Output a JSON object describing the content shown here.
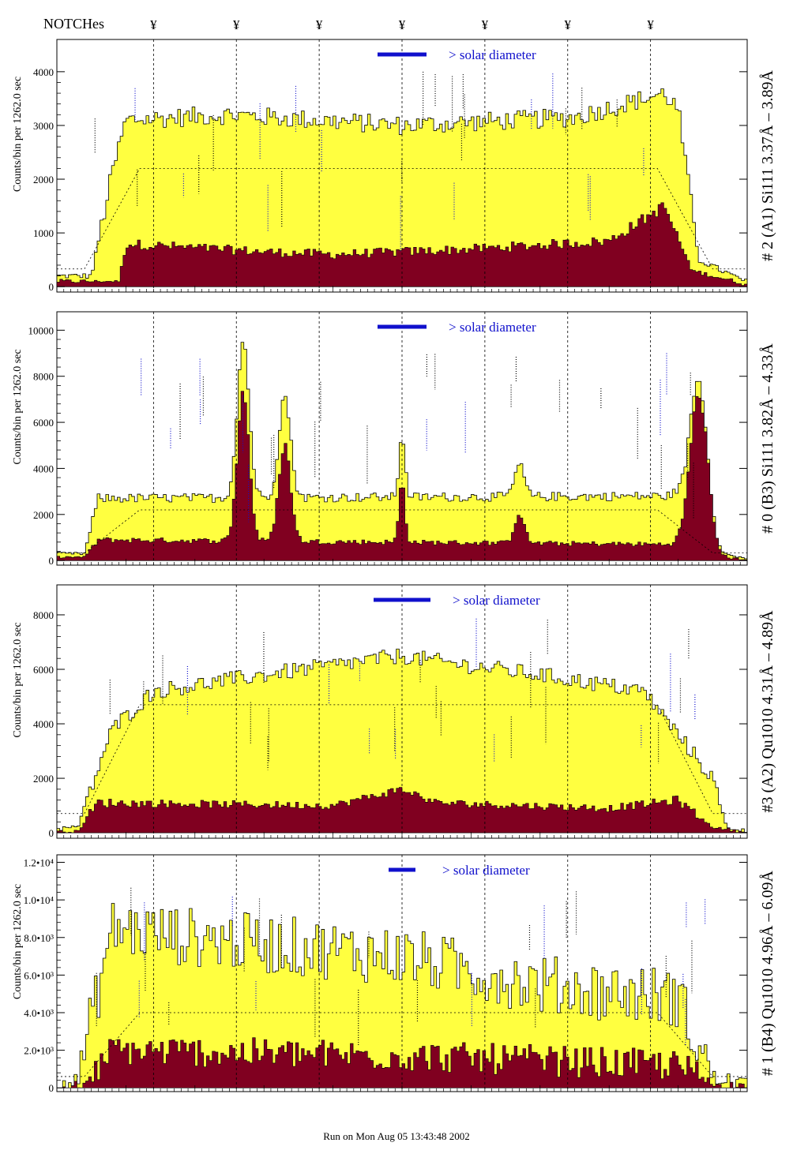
{
  "header": {
    "notches_label": "NOTCHes",
    "notch_marker": "¥"
  },
  "notch_positions": [
    0.14,
    0.26,
    0.38,
    0.5,
    0.62,
    0.74,
    0.86
  ],
  "footer": {
    "run_label": "Run on Mon Aug 05 13:43:48 2002"
  },
  "colors": {
    "total_fill": "#ffff40",
    "component_fill": "#800020",
    "label_blue": "#1010cc",
    "axis": "#000000"
  },
  "chart_data": [
    {
      "type": "bar",
      "panel_label": "# 2 (A1) Si111  3.37Å – 3.89Å",
      "ylabel": "Counts/bin per   1262.0 sec",
      "legend_text": "> solar diameter",
      "legend_position": "top-center",
      "yticks": [
        "0",
        "1000",
        "2000",
        "3000",
        "4000"
      ],
      "ylim": [
        -100,
        4600
      ],
      "profile": [
        [
          0.0,
          200
        ],
        [
          0.05,
          200
        ],
        [
          0.08,
          2100
        ],
        [
          0.1,
          3100
        ],
        [
          0.25,
          3200
        ],
        [
          0.5,
          3000
        ],
        [
          0.75,
          3150
        ],
        [
          0.88,
          3600
        ],
        [
          0.9,
          3300
        ],
        [
          0.93,
          500
        ],
        [
          1.0,
          80
        ]
      ],
      "component": [
        [
          0.0,
          100
        ],
        [
          0.09,
          100
        ],
        [
          0.1,
          800
        ],
        [
          0.3,
          650
        ],
        [
          0.4,
          600
        ],
        [
          0.6,
          700
        ],
        [
          0.8,
          850
        ],
        [
          0.88,
          1500
        ],
        [
          0.92,
          300
        ],
        [
          1.0,
          40
        ]
      ],
      "peaks": [],
      "avg_level": 2200,
      "noise": 180
    },
    {
      "type": "bar",
      "panel_label": "# 0 (B3) Si111  3.82Å – 4.33Å",
      "ylabel": "Counts/bin per   1262.0 sec",
      "legend_text": "> solar diameter",
      "legend_position": "top-center",
      "yticks": [
        "0",
        "2000",
        "4000",
        "6000",
        "8000",
        "10000"
      ],
      "ylim": [
        -200,
        10800
      ],
      "profile": [
        [
          0.0,
          300
        ],
        [
          0.04,
          300
        ],
        [
          0.06,
          2700
        ],
        [
          0.9,
          2800
        ],
        [
          0.93,
          400
        ],
        [
          1.0,
          100
        ]
      ],
      "component": [
        [
          0.0,
          150
        ],
        [
          0.04,
          150
        ],
        [
          0.06,
          900
        ],
        [
          0.9,
          700
        ],
        [
          0.93,
          200
        ],
        [
          1.0,
          50
        ]
      ],
      "peaks": [
        [
          0.27,
          6500,
          0.012
        ],
        [
          0.33,
          4200,
          0.012
        ],
        [
          0.5,
          2600,
          0.006
        ],
        [
          0.67,
          1300,
          0.01
        ],
        [
          0.93,
          7000,
          0.018
        ]
      ],
      "avg_level": 2200,
      "noise": 200
    },
    {
      "type": "bar",
      "panel_label": "#3 (A2) Qu1010  4.31Å – 4.89Å",
      "ylabel": "Counts/bin per   1262.0 sec",
      "legend_text": "> solar diameter",
      "legend_position": "top-center",
      "yticks": [
        "0",
        "2000",
        "4000",
        "6000",
        "8000"
      ],
      "ylim": [
        -200,
        9100
      ],
      "profile": [
        [
          0.0,
          150
        ],
        [
          0.03,
          200
        ],
        [
          0.08,
          3800
        ],
        [
          0.14,
          5200
        ],
        [
          0.3,
          5800
        ],
        [
          0.5,
          6500
        ],
        [
          0.55,
          6300
        ],
        [
          0.7,
          5800
        ],
        [
          0.85,
          5200
        ],
        [
          0.95,
          2000
        ],
        [
          0.97,
          200
        ],
        [
          1.0,
          80
        ]
      ],
      "component": [
        [
          0.0,
          50
        ],
        [
          0.03,
          50
        ],
        [
          0.06,
          1100
        ],
        [
          0.4,
          1000
        ],
        [
          0.5,
          1600
        ],
        [
          0.55,
          1100
        ],
        [
          0.8,
          900
        ],
        [
          0.9,
          1200
        ],
        [
          0.95,
          200
        ],
        [
          1.0,
          30
        ]
      ],
      "peaks": [],
      "avg_level": 4700,
      "noise": 300
    },
    {
      "type": "bar",
      "panel_label": "# 1 (B4) Qu1010 4.96Å – 6.09Å",
      "ylabel": "Counts/bin per   1262.0 sec",
      "legend_text": "> solar diameter",
      "legend_position": "top-center",
      "yticks": [
        "0",
        "2.0•10³",
        "4.0•10³",
        "6.0•10³",
        "8.0•10³",
        "1.0•10⁴",
        "1.2•10⁴"
      ],
      "ylim": [
        -200,
        12400
      ],
      "profile": [
        [
          0.0,
          300
        ],
        [
          0.03,
          300
        ],
        [
          0.08,
          8500
        ],
        [
          0.2,
          8000
        ],
        [
          0.5,
          7000
        ],
        [
          0.7,
          5500
        ],
        [
          0.9,
          4800
        ],
        [
          0.95,
          500
        ],
        [
          1.0,
          200
        ]
      ],
      "component": [
        [
          0.0,
          100
        ],
        [
          0.04,
          100
        ],
        [
          0.08,
          2000
        ],
        [
          0.5,
          1700
        ],
        [
          0.9,
          1200
        ],
        [
          0.95,
          200
        ],
        [
          1.0,
          50
        ]
      ],
      "peaks": [],
      "avg_level": 4000,
      "noise": 1600
    }
  ]
}
